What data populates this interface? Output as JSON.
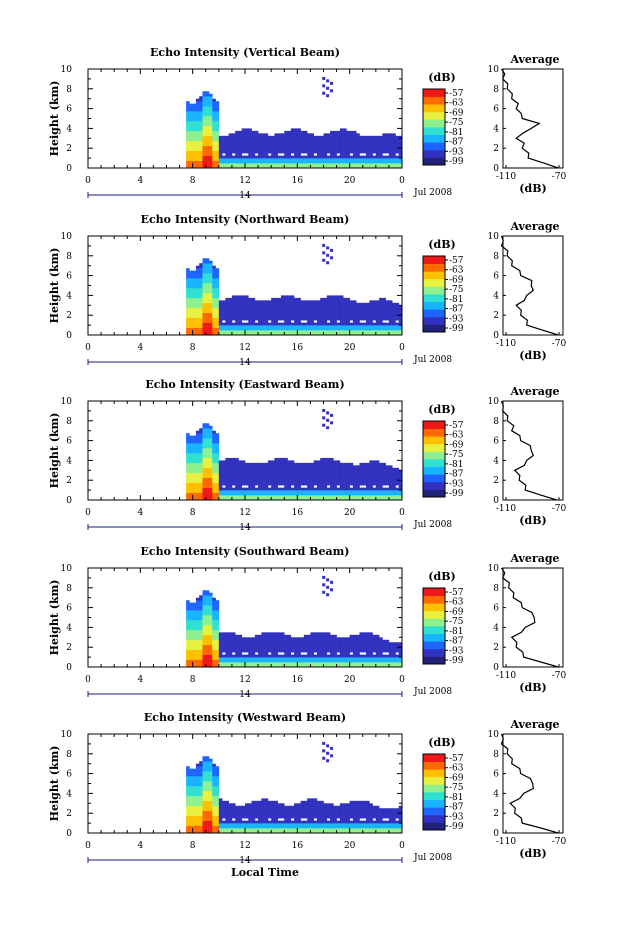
{
  "figure": {
    "xlabel": "Local Time"
  },
  "common": {
    "height_label": "Height (km)",
    "y_ticks": [
      "0",
      "2",
      "4",
      "6",
      "8",
      "10"
    ],
    "x_ticks": [
      "0",
      "4",
      "8",
      "12",
      "16",
      "20",
      "0"
    ],
    "date_tick": "14",
    "date_label": "Jul 2008",
    "colorbar_unit": "(dB)",
    "colorbar_ticks": [
      "-57",
      "-63",
      "-69",
      "-75",
      "-81",
      "-87",
      "-93",
      "-99"
    ],
    "avg_title": "Average",
    "avg_x_ticks": [
      "-110",
      "-70"
    ],
    "avg_xlabel": "(dB)"
  },
  "colors": {
    "background_echo": "#2c2c9e",
    "colormap": [
      "#22227a",
      "#3232c0",
      "#1e64ff",
      "#19b4ff",
      "#30e0d0",
      "#8ff08f",
      "#e8f040",
      "#ffc000",
      "#ff6a00",
      "#f01818"
    ]
  },
  "chart_data": [
    {
      "type": "heatmap",
      "title": "Echo Intensity (Vertical Beam)",
      "ylabel": "Height (km)",
      "xlim_hours": [
        0,
        24
      ],
      "ylim_km": [
        0,
        10
      ],
      "zlim_db": [
        -99,
        -57
      ],
      "average_profile": {
        "height_km": [
          0,
          0.5,
          1,
          1.5,
          2,
          2.5,
          3,
          3.5,
          4,
          4.5,
          5,
          5.5,
          6,
          6.5,
          7,
          7.5,
          8,
          8.5,
          9,
          9.5,
          10
        ],
        "db": [
          -72,
          -84,
          -92,
          -94,
          -96,
          -97,
          -100,
          -98,
          -90,
          -87,
          -96,
          -99,
          -100,
          -101,
          -103,
          -105,
          -106,
          -108,
          -109,
          -110,
          -110
        ],
        "xlim": [
          -110,
          -70
        ]
      }
    },
    {
      "type": "heatmap",
      "title": "Echo Intensity (Northward Beam)",
      "ylabel": "Height (km)",
      "xlim_hours": [
        0,
        24
      ],
      "ylim_km": [
        0,
        10
      ],
      "zlim_db": [
        -99,
        -57
      ],
      "average_profile": {
        "height_km": [
          0,
          0.5,
          1,
          1.5,
          2,
          2.5,
          3,
          3.5,
          4,
          4.5,
          5,
          5.5,
          6,
          6.5,
          7,
          7.5,
          8,
          8.5,
          9,
          9.5,
          10
        ],
        "db": [
          -72,
          -85,
          -93,
          -95,
          -97,
          -99,
          -100,
          -97,
          -93,
          -91,
          -90,
          -92,
          -97,
          -100,
          -103,
          -105,
          -106,
          -108,
          -110,
          -111,
          -110
        ],
        "xlim": [
          -110,
          -70
        ]
      }
    },
    {
      "type": "heatmap",
      "title": "Echo Intensity (Eastward Beam)",
      "ylabel": "Height (km)",
      "xlim_hours": [
        0,
        24
      ],
      "ylim_km": [
        0,
        10
      ],
      "zlim_db": [
        -99,
        -57
      ],
      "average_profile": {
        "height_km": [
          0,
          0.5,
          1,
          1.5,
          2,
          2.5,
          3,
          3.5,
          4,
          4.5,
          5,
          5.5,
          6,
          6.5,
          7,
          7.5,
          8,
          8.5,
          9,
          9.5,
          10
        ],
        "db": [
          -73,
          -86,
          -94,
          -96,
          -98,
          -100,
          -101,
          -97,
          -93,
          -91,
          -90,
          -93,
          -97,
          -100,
          -103,
          -104,
          -106,
          -108,
          -109,
          -111,
          -110
        ],
        "xlim": [
          -110,
          -70
        ]
      }
    },
    {
      "type": "heatmap",
      "title": "Echo Intensity (Southward Beam)",
      "ylabel": "Height (km)",
      "xlim_hours": [
        0,
        24
      ],
      "ylim_km": [
        0,
        10
      ],
      "zlim_db": [
        -99,
        -57
      ],
      "average_profile": {
        "height_km": [
          0,
          0.5,
          1,
          1.5,
          2,
          2.5,
          3,
          3.5,
          4,
          4.5,
          5,
          5.5,
          6,
          6.5,
          7,
          7.5,
          8,
          8.5,
          9,
          9.5,
          10
        ],
        "db": [
          -72,
          -86,
          -95,
          -98,
          -100,
          -102,
          -103,
          -99,
          -94,
          -90,
          -88,
          -92,
          -96,
          -99,
          -102,
          -104,
          -105,
          -107,
          -109,
          -110,
          -110
        ],
        "xlim": [
          -110,
          -70
        ]
      }
    },
    {
      "type": "heatmap",
      "title": "Echo Intensity (Westward Beam)",
      "ylabel": "Height (km)",
      "xlim_hours": [
        0,
        24
      ],
      "ylim_km": [
        0,
        10
      ],
      "zlim_db": [
        -99,
        -57
      ],
      "average_profile": {
        "height_km": [
          0,
          0.5,
          1,
          1.5,
          2,
          2.5,
          3,
          3.5,
          4,
          4.5,
          5,
          5.5,
          6,
          6.5,
          7,
          7.5,
          8,
          8.5,
          9,
          9.5,
          10
        ],
        "db": [
          -72,
          -86,
          -96,
          -99,
          -101,
          -103,
          -104,
          -100,
          -95,
          -91,
          -89,
          -93,
          -97,
          -100,
          -103,
          -105,
          -106,
          -108,
          -110,
          -111,
          -110
        ],
        "xlim": [
          -110,
          -70
        ]
      }
    }
  ]
}
